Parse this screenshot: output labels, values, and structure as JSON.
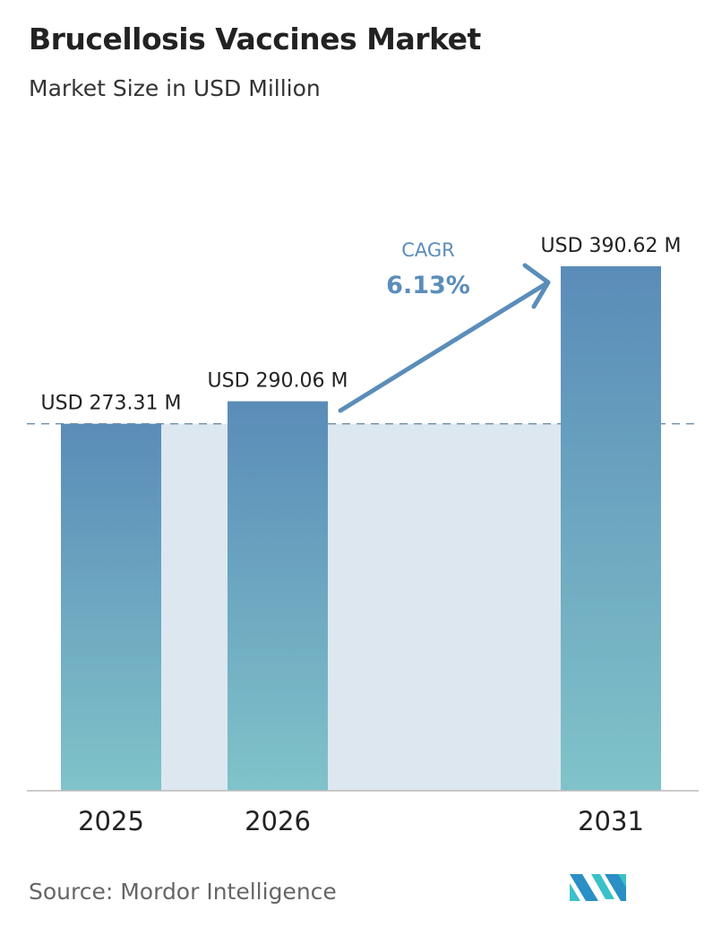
{
  "title": "Brucellosis Vaccines Market",
  "subtitle": "Market Size in USD Million",
  "source": "Source:  Mordor Intelligence",
  "logo_text": "Mordor Intelligence",
  "colors": {
    "bar_top": "#5a8cb8",
    "bar_bottom": "#80c3c9",
    "fill": "#dde7f0",
    "arrow": "#5b8dba",
    "text": "#222222"
  },
  "chart_data": {
    "type": "bar",
    "categories": [
      "2025",
      "2026",
      "2031"
    ],
    "values": [
      273.31,
      290.06,
      390.62
    ],
    "data_labels": [
      "USD 273.31 M",
      "USD 290.06 M",
      "USD 390.62 M"
    ],
    "ylim": [
      0,
      390.62
    ],
    "grid": false,
    "annotation": {
      "label": "CAGR",
      "value": "6.13%"
    }
  }
}
